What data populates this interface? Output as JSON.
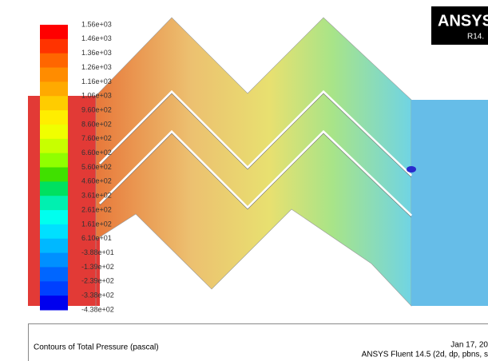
{
  "logo": {
    "brand": "ANSYS",
    "version": "R14."
  },
  "colorbar": {
    "colors": [
      "#ff0000",
      "#ff3300",
      "#ff6600",
      "#ff8c00",
      "#ffaa00",
      "#ffcc00",
      "#ffee00",
      "#f0ff00",
      "#c8ff00",
      "#90ff00",
      "#40e000",
      "#00e060",
      "#00f0b0",
      "#00ffee",
      "#00e0ff",
      "#00b8ff",
      "#0090ff",
      "#0066ff",
      "#0040ff",
      "#0000ee"
    ],
    "labels": [
      "1.56e+03",
      "1.46e+03",
      "1.36e+03",
      "1.26e+03",
      "1.16e+03",
      "1.06e+03",
      "9.60e+02",
      "8.60e+02",
      "7.60e+02",
      "6.60e+02",
      "5.60e+02",
      "4.60e+02",
      "3.61e+02",
      "2.61e+02",
      "1.61e+02",
      "6.10e+01",
      "-3.88e+01",
      "-1.39e+02",
      "-2.39e+02",
      "-3.38e+02",
      "-4.38e+02"
    ]
  },
  "footer": {
    "title": "Contours of Total Pressure (pascal)",
    "date": "Jan 17, 20",
    "solver": "ANSYS Fluent 14.5 (2d, dp, pbns, s"
  }
}
